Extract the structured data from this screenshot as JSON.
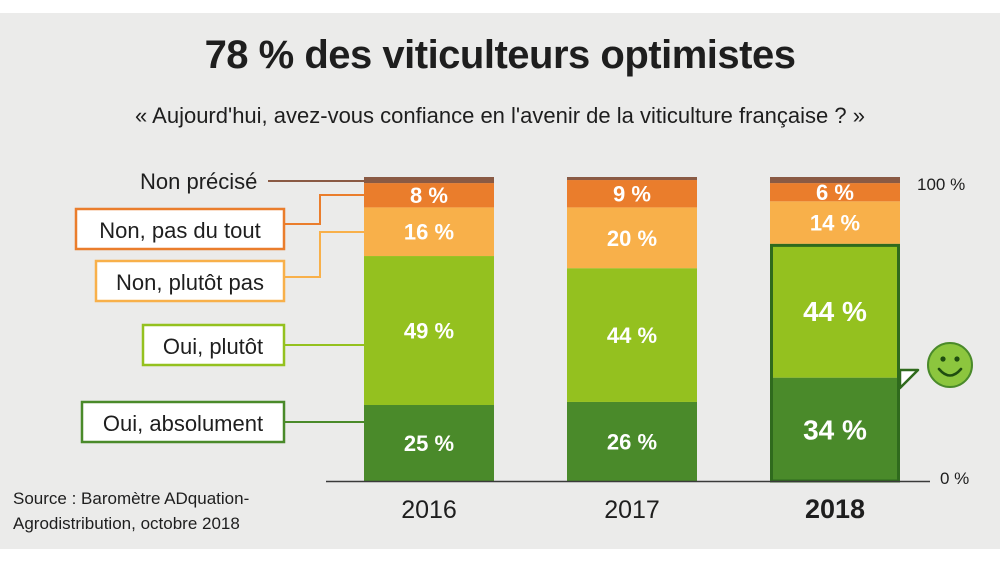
{
  "title": "78 % des viticulteurs optimistes",
  "subtitle": "« Aujourd'hui, avez-vous confiance en l'avenir de la viticulture française ? »",
  "source": {
    "line1": "Source : Baromètre ADquation-",
    "line2": "Agrodistribution, octobre 2018"
  },
  "colors": {
    "Non précisé": "#8a5a44",
    "Non, pas du tout": "#ea7d2c",
    "Non, plutôt pas": "#f8b04a",
    "Oui, plutôt": "#94c11f",
    "Oui, absolument": "#4a8a2a"
  },
  "smiley_icon": "smiley-face-icon",
  "chart_data": {
    "type": "bar",
    "stacked": true,
    "categories": [
      "2016",
      "2017",
      "2018"
    ],
    "highlight": "2018",
    "series": [
      {
        "name": "Oui, absolument",
        "values": [
          25,
          26,
          34
        ],
        "labels": [
          "25 %",
          "26 %",
          "34 %"
        ]
      },
      {
        "name": "Oui, plutôt",
        "values": [
          49,
          44,
          44
        ],
        "labels": [
          "49 %",
          "44 %",
          "44 %"
        ]
      },
      {
        "name": "Non, plutôt pas",
        "values": [
          16,
          20,
          14
        ],
        "labels": [
          "16 %",
          "20 %",
          "14 %"
        ]
      },
      {
        "name": "Non, pas du tout",
        "values": [
          8,
          9,
          6
        ],
        "labels": [
          "8 %",
          "9 %",
          "6 %"
        ]
      },
      {
        "name": "Non précisé",
        "values": [
          2,
          1,
          2
        ],
        "labels": [
          "",
          "",
          ""
        ]
      }
    ],
    "ylim": [
      0,
      100
    ],
    "y_ticks": [
      "0 %",
      "100 %"
    ],
    "legend": "left"
  }
}
